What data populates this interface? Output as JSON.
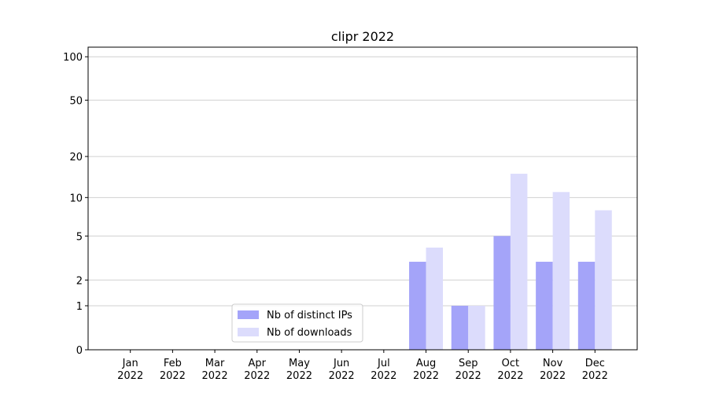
{
  "chart_data": {
    "type": "bar",
    "title": "clipr 2022",
    "categories": [
      "Jan 2022",
      "Feb 2022",
      "Mar 2022",
      "Apr 2022",
      "May 2022",
      "Jun 2022",
      "Jul 2022",
      "Aug 2022",
      "Sep 2022",
      "Oct 2022",
      "Nov 2022",
      "Dec 2022"
    ],
    "series": [
      {
        "name": "Nb of distinct IPs",
        "color": "#a4a4f9",
        "values": [
          0,
          0,
          0,
          0,
          0,
          0,
          0,
          3,
          1,
          5,
          3,
          3
        ]
      },
      {
        "name": "Nb of downloads",
        "color": "#dcdcfc",
        "values": [
          0,
          0,
          0,
          0,
          0,
          0,
          0,
          4,
          1,
          15,
          11,
          8
        ]
      }
    ],
    "yscale": "log1p",
    "ylim": [
      0,
      116.5
    ],
    "yticks": [
      0,
      1,
      2,
      5,
      10,
      20,
      50,
      100
    ],
    "grid": true,
    "legend": "lower center"
  }
}
